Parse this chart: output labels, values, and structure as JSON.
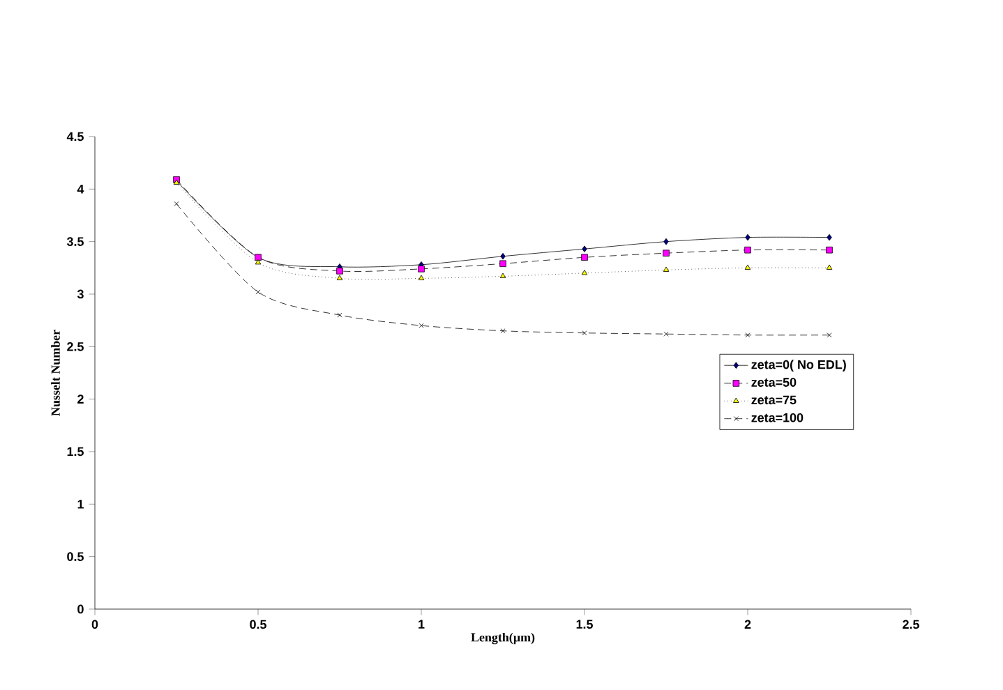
{
  "chart_data": {
    "type": "line",
    "xlabel": "Length(µm)",
    "ylabel": "Nusselt Number",
    "x": [
      0.25,
      0.5,
      0.75,
      1,
      1.25,
      1.5,
      1.75,
      2,
      2.25
    ],
    "xlim": [
      0,
      2.5
    ],
    "xticks": [
      0,
      0.5,
      1,
      1.5,
      2,
      2.5
    ],
    "ylim": [
      0,
      4.5
    ],
    "yticks": [
      0,
      0.5,
      1,
      1.5,
      2,
      2.5,
      3,
      3.5,
      4,
      4.5
    ],
    "grid": false,
    "legend": "right",
    "series": [
      {
        "name": "zeta=0( No EDL)",
        "color": "#000080",
        "marker": "diamond",
        "line_style": "solid",
        "values": [
          4.08,
          3.35,
          3.26,
          3.28,
          3.36,
          3.43,
          3.5,
          3.54,
          3.54
        ]
      },
      {
        "name": "zeta=50",
        "color": "#ff00ff",
        "marker": "square",
        "line_style": "dashed",
        "values": [
          4.09,
          3.35,
          3.22,
          3.24,
          3.29,
          3.35,
          3.39,
          3.42,
          3.42
        ]
      },
      {
        "name": "zeta=75",
        "color": "#ffff00",
        "marker": "triangle",
        "line_style": "dotted",
        "values": [
          4.06,
          3.3,
          3.15,
          3.15,
          3.17,
          3.2,
          3.23,
          3.25,
          3.25
        ]
      },
      {
        "name": "zeta=100",
        "color": "#000000",
        "marker": "cross",
        "line_style": "dashed",
        "values": [
          3.86,
          3.02,
          2.8,
          2.7,
          2.65,
          2.63,
          2.62,
          2.61,
          2.61
        ]
      }
    ]
  }
}
